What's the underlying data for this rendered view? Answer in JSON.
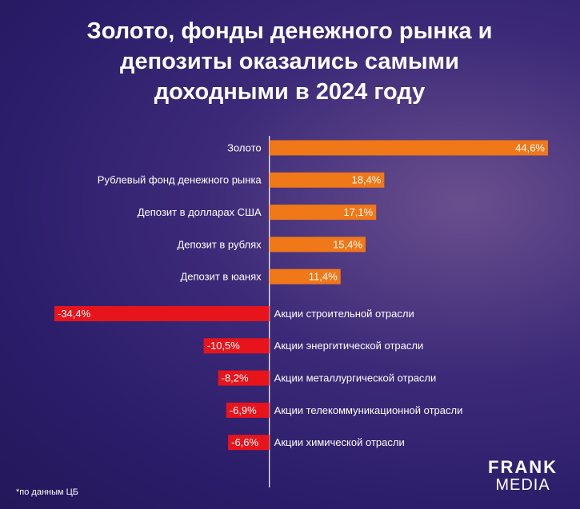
{
  "chart_data": {
    "type": "diverging-bar",
    "title": "Золото, фонды денежного рынка и депозиты оказались самыми доходными в 2024 году",
    "categories": [
      "Золото",
      "Рублевый фонд денежного рынка",
      "Депозит в долларах США",
      "Депозит в рублях",
      "Депозит в юанях",
      "Акции строительной отрасли",
      "Акции энергитической отрасли",
      "Акции металлургической отрасли",
      "Акции телекоммуникационной отрасли",
      "Акции химической отрасли"
    ],
    "values": [
      44.6,
      18.4,
      17.1,
      15.4,
      11.4,
      -34.4,
      -10.5,
      -8.2,
      -6.9,
      -6.6
    ],
    "value_labels": [
      "44,6%",
      "18,4%",
      "17,1%",
      "15,4%",
      "11,4%",
      "-34,4%",
      "-10,5%",
      "-8,2%",
      "-6,9%",
      "-6,6%"
    ],
    "positive_color": "#f07818",
    "negative_color": "#e8141c",
    "footnote": "*по данным ЦБ"
  },
  "logo": {
    "line1": "FRANK",
    "line2": "MEDIA"
  }
}
